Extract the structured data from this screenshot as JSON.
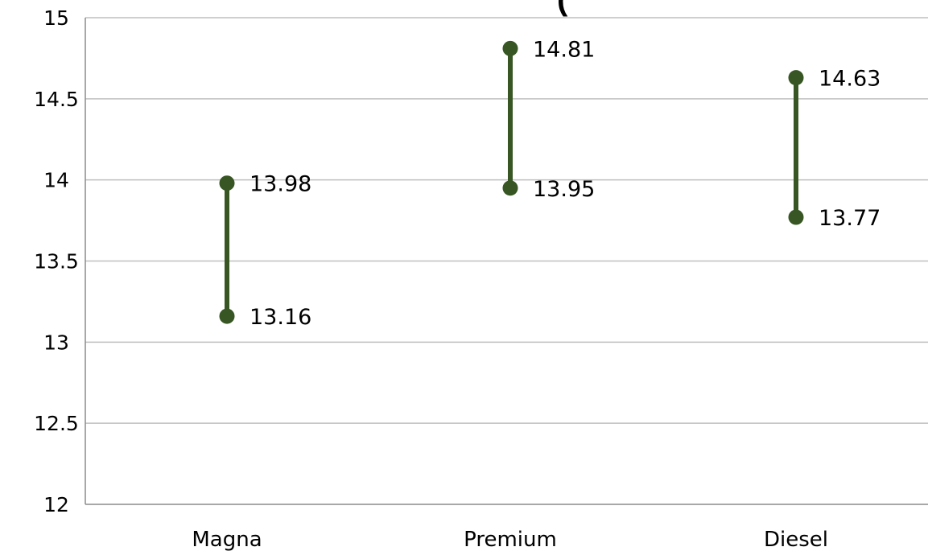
{
  "chart_data": {
    "type": "range",
    "title": "(",
    "categories": [
      "Magna",
      "Premium",
      "Diesel"
    ],
    "series": [
      {
        "values": [
          13.16,
          13.95,
          13.77
        ]
      },
      {
        "values": [
          13.98,
          14.81,
          14.63
        ]
      }
    ],
    "data_labels": [
      {
        "low": "13.16",
        "high": "13.98"
      },
      {
        "low": "13.95",
        "high": "14.81"
      },
      {
        "low": "13.77",
        "high": "14.63"
      }
    ],
    "ylim": [
      12,
      15
    ],
    "yticks": [
      12,
      12.5,
      13,
      13.5,
      14,
      14.5,
      15
    ],
    "ytick_labels": [
      "12",
      "12.5",
      "13",
      "13.5",
      "14",
      "14.5",
      "15"
    ],
    "grid": true,
    "colors": {
      "series": "#375623",
      "grid": "#bfbfbf",
      "axis": "#8c8c8c"
    }
  }
}
